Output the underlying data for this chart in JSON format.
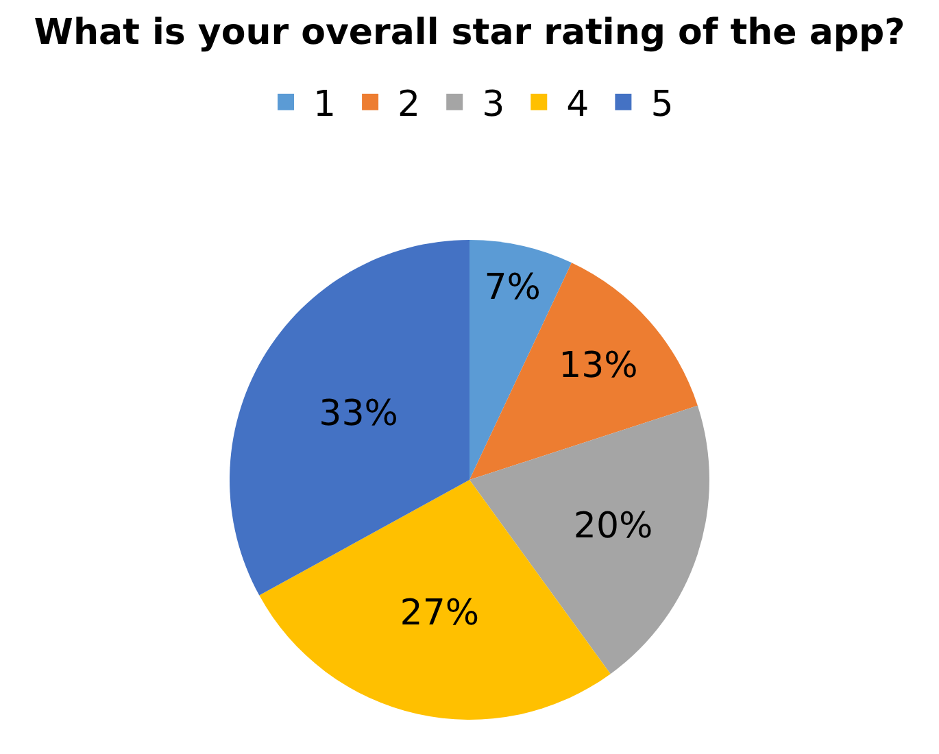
{
  "chart_data": {
    "type": "pie",
    "title": "What is your overall star rating of the app?",
    "categories": [
      "1",
      "2",
      "3",
      "4",
      "5"
    ],
    "values": [
      7,
      13,
      20,
      27,
      33
    ],
    "value_labels": [
      "7%",
      "13%",
      "20%",
      "27%",
      "33%"
    ],
    "colors": [
      "#5b9bd5",
      "#ed7d31",
      "#a5a5a5",
      "#ffc000",
      "#4472c4"
    ],
    "legend": "top"
  }
}
